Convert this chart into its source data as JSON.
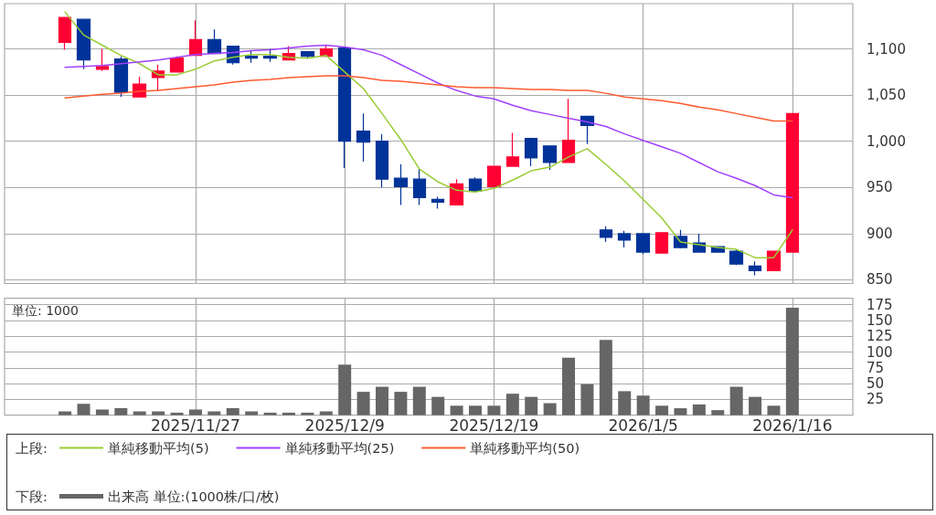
{
  "chart_data": [
    {
      "type": "candlestick",
      "categories": [
        null,
        null,
        null,
        null,
        null,
        null,
        null,
        "2025/11/27",
        null,
        null,
        null,
        null,
        null,
        null,
        null,
        "2025/12/9",
        null,
        null,
        null,
        null,
        null,
        null,
        null,
        "2025/12/19",
        null,
        null,
        null,
        null,
        null,
        null,
        null,
        "2026/1/5",
        null,
        null,
        null,
        null,
        null,
        null,
        null,
        "2026/1/16"
      ],
      "ohlc": [
        [
          1107,
          1134,
          1099,
          1134
        ],
        [
          1132,
          1132,
          1078,
          1088
        ],
        [
          1078,
          1100,
          1076,
          1081
        ],
        [
          1089,
          1092,
          1048,
          1053
        ],
        [
          1048,
          1070,
          1048,
          1062
        ],
        [
          1069,
          1083,
          1055,
          1076
        ],
        [
          1075,
          1092,
          1075,
          1090
        ],
        [
          1093,
          1131,
          1093,
          1110
        ],
        [
          1110,
          1121,
          1095,
          1095
        ],
        [
          1103,
          1103,
          1083,
          1085
        ],
        [
          1092,
          1098,
          1085,
          1090
        ],
        [
          1092,
          1100,
          1086,
          1090
        ],
        [
          1088,
          1103,
          1088,
          1095
        ],
        [
          1097,
          1097,
          1090,
          1092
        ],
        [
          1092,
          1104,
          1092,
          1100
        ],
        [
          1101,
          1101,
          971,
          1000
        ],
        [
          1011,
          1030,
          978,
          999
        ],
        [
          1000,
          1008,
          950,
          959
        ],
        [
          960,
          975,
          931,
          951
        ],
        [
          959,
          970,
          931,
          939
        ],
        [
          937,
          940,
          927,
          934
        ],
        [
          931,
          959,
          931,
          954
        ],
        [
          959,
          961,
          946,
          946
        ],
        [
          951,
          973,
          951,
          973
        ],
        [
          973,
          1009,
          973,
          983
        ],
        [
          1003,
          1003,
          973,
          982
        ],
        [
          995,
          995,
          969,
          977
        ],
        [
          977,
          1046,
          977,
          1001
        ],
        [
          1027,
          1027,
          997,
          1017
        ],
        [
          904,
          908,
          891,
          896
        ],
        [
          900,
          903,
          885,
          893
        ],
        [
          900,
          900,
          878,
          880
        ],
        [
          879,
          901,
          879,
          901
        ],
        [
          897,
          904,
          884,
          885
        ],
        [
          890,
          900,
          880,
          880
        ],
        [
          886,
          886,
          880,
          880
        ],
        [
          881,
          883,
          866,
          867
        ],
        [
          865,
          870,
          855,
          860
        ],
        [
          860,
          881,
          860,
          881
        ],
        [
          880,
          1030,
          880,
          1030
        ]
      ],
      "colors": [
        "#ff0033",
        "#003399",
        "#ff0033",
        "#003399",
        "#ff0033",
        "#ff0033",
        "#ff0033",
        "#ff0033",
        "#003399",
        "#003399",
        "#003399",
        "#003399",
        "#ff0033",
        "#003399",
        "#ff0033",
        "#003399",
        "#003399",
        "#003399",
        "#003399",
        "#003399",
        "#003399",
        "#ff0033",
        "#003399",
        "#ff0033",
        "#ff0033",
        "#003399",
        "#003399",
        "#ff0033",
        "#003399",
        "#003399",
        "#003399",
        "#003399",
        "#ff0033",
        "#003399",
        "#003399",
        "#003399",
        "#003399",
        "#003399",
        "#ff0033",
        "#ff0033"
      ],
      "series": [
        {
          "type": "line",
          "name": "単純移動平均(5)",
          "color": "#99cc33",
          "values": [
            1140,
            1115,
            1104,
            1093,
            1084,
            1072,
            1072,
            1078,
            1087,
            1091,
            1094,
            1094,
            1091,
            1090,
            1093,
            1075,
            1057,
            1030,
            1002,
            970,
            956,
            947,
            945,
            949,
            958,
            968,
            972,
            983,
            992,
            975,
            957,
            937,
            917,
            891,
            888,
            885,
            883,
            874,
            874,
            904
          ]
        },
        {
          "type": "line",
          "name": "単純移動平均(25)",
          "color": "#a040ff",
          "values": [
            1080,
            1081,
            1082,
            1084,
            1086,
            1088,
            1091,
            1094,
            1095,
            1096,
            1098,
            1099,
            1101,
            1103,
            1104,
            1102,
            1099,
            1093,
            1083,
            1073,
            1063,
            1055,
            1049,
            1046,
            1039,
            1033,
            1029,
            1025,
            1021,
            1016,
            1008,
            1001,
            994,
            987,
            977,
            967,
            960,
            952,
            942,
            939
          ]
        },
        {
          "type": "line",
          "name": "単純移動平均(50)",
          "color": "#ff5a30",
          "values": [
            1047,
            1049,
            1051,
            1052,
            1054,
            1055,
            1057,
            1059,
            1061,
            1064,
            1066,
            1067,
            1069,
            1070,
            1071,
            1071,
            1069,
            1066,
            1065,
            1063,
            1061,
            1059,
            1058,
            1058,
            1057,
            1056,
            1056,
            1055,
            1055,
            1052,
            1048,
            1046,
            1044,
            1041,
            1037,
            1034,
            1030,
            1026,
            1022,
            1022
          ]
        }
      ],
      "ylim": [
        846,
        1149
      ],
      "yticks": [
        850,
        900,
        950,
        {
          "value": 1000,
          "label": "1,000"
        },
        {
          "value": 1050,
          "label": "1,050"
        },
        {
          "value": 1100,
          "label": "1,100"
        }
      ],
      "grid": true,
      "legend": "bottom",
      "legend_title": "上段:",
      "tick_labels": "y",
      "marker": "none"
    },
    {
      "type": "bar",
      "categories": [
        null,
        null,
        null,
        null,
        null,
        null,
        null,
        "2025/11/27",
        null,
        null,
        null,
        null,
        null,
        null,
        null,
        "2025/12/9",
        null,
        null,
        null,
        null,
        null,
        null,
        null,
        "2025/12/19",
        null,
        null,
        null,
        null,
        null,
        null,
        null,
        "2026/1/5",
        null,
        null,
        null,
        null,
        null,
        null,
        null,
        "2026/1/16"
      ],
      "series": [
        {
          "name": "出来高 単位:(1000株/口/枚)",
          "color": "#666666",
          "values": [
            6,
            18,
            9,
            11,
            6,
            6,
            4,
            9,
            6,
            11,
            6,
            4,
            4,
            4,
            6,
            80,
            37,
            45,
            37,
            45,
            29,
            15,
            15,
            15,
            34,
            29,
            19,
            91,
            49,
            119,
            38,
            31,
            15,
            11,
            17,
            8,
            45,
            29,
            15,
            170
          ]
        }
      ],
      "ylim": [
        0,
        185
      ],
      "yticks": [
        25,
        50,
        75,
        100,
        125,
        150,
        175
      ],
      "grid": true,
      "legend": "bottom",
      "legend_title": "下段:",
      "annotations": [
        "単位: 1000"
      ]
    }
  ]
}
